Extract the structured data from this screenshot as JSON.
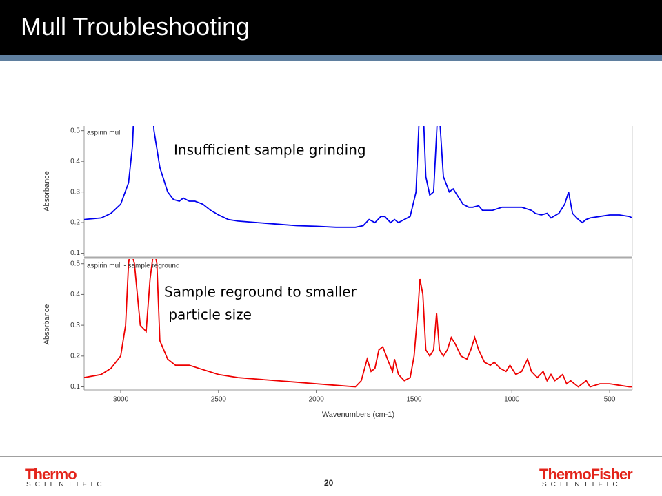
{
  "header": {
    "title": "Mull Troubleshooting"
  },
  "chart_data": [
    {
      "type": "line",
      "ylabel": "Absorbance",
      "annotation": [
        "Insufficient sample grinding"
      ],
      "xlim": [
        3187,
        384
      ],
      "ylim": [
        0.09,
        0.515
      ],
      "yticks": [
        0.1,
        0.2,
        0.3,
        0.4,
        0.5
      ],
      "x": [
        3187,
        3100,
        3050,
        3000,
        2960,
        2940,
        2930,
        2850,
        2830,
        2800,
        2760,
        2730,
        2700,
        2680,
        2650,
        2620,
        2580,
        2540,
        2500,
        2450,
        2400,
        2300,
        2200,
        2100,
        2000,
        1900,
        1800,
        1760,
        1730,
        1700,
        1670,
        1650,
        1620,
        1600,
        1580,
        1520,
        1490,
        1470,
        1455,
        1440,
        1420,
        1400,
        1380,
        1370,
        1350,
        1320,
        1300,
        1270,
        1250,
        1220,
        1200,
        1170,
        1150,
        1100,
        1050,
        1000,
        950,
        900,
        880,
        850,
        820,
        800,
        760,
        730,
        710,
        690,
        660,
        640,
        620,
        600,
        550,
        500,
        450,
        400,
        384
      ],
      "series": [
        {
          "name": "aspirin mull",
          "color": "#0000ee",
          "values": [
            0.21,
            0.215,
            0.23,
            0.26,
            0.33,
            0.45,
            0.6,
            0.7,
            0.5,
            0.38,
            0.3,
            0.275,
            0.27,
            0.28,
            0.27,
            0.27,
            0.26,
            0.24,
            0.225,
            0.21,
            0.205,
            0.2,
            0.195,
            0.19,
            0.188,
            0.185,
            0.185,
            0.19,
            0.21,
            0.2,
            0.22,
            0.22,
            0.2,
            0.21,
            0.2,
            0.22,
            0.3,
            0.6,
            0.6,
            0.35,
            0.29,
            0.3,
            0.55,
            0.55,
            0.35,
            0.3,
            0.31,
            0.28,
            0.26,
            0.25,
            0.25,
            0.255,
            0.24,
            0.24,
            0.25,
            0.25,
            0.25,
            0.24,
            0.23,
            0.225,
            0.23,
            0.215,
            0.23,
            0.26,
            0.3,
            0.23,
            0.21,
            0.2,
            0.21,
            0.215,
            0.22,
            0.225,
            0.225,
            0.22,
            0.215
          ]
        }
      ]
    },
    {
      "type": "line",
      "ylabel": "Absorbance",
      "xlabel": "Wavenumbers (cm-1)",
      "annotation": [
        "Sample reground to smaller",
        " particle size"
      ],
      "xlim": [
        3187,
        384
      ],
      "xticks": [
        3000,
        2500,
        2000,
        1500,
        1000,
        500
      ],
      "ylim": [
        0.09,
        0.515
      ],
      "yticks": [
        0.1,
        0.2,
        0.3,
        0.4,
        0.5
      ],
      "x": [
        3187,
        3100,
        3050,
        3000,
        2975,
        2960,
        2950,
        2930,
        2900,
        2870,
        2850,
        2830,
        2815,
        2800,
        2760,
        2720,
        2650,
        2600,
        2500,
        2400,
        2300,
        2200,
        2100,
        2000,
        1900,
        1800,
        1770,
        1740,
        1720,
        1700,
        1680,
        1660,
        1630,
        1610,
        1600,
        1580,
        1550,
        1520,
        1500,
        1480,
        1470,
        1455,
        1440,
        1420,
        1400,
        1385,
        1370,
        1350,
        1330,
        1310,
        1290,
        1260,
        1230,
        1210,
        1190,
        1170,
        1140,
        1110,
        1090,
        1060,
        1030,
        1010,
        980,
        950,
        920,
        900,
        870,
        840,
        820,
        800,
        780,
        760,
        740,
        720,
        700,
        680,
        660,
        640,
        620,
        600,
        550,
        500,
        450,
        400,
        384
      ],
      "series": [
        {
          "name": "aspirin mull - sample reground",
          "color": "#ee0000",
          "values": [
            0.13,
            0.14,
            0.16,
            0.2,
            0.3,
            0.5,
            0.55,
            0.5,
            0.3,
            0.28,
            0.45,
            0.55,
            0.5,
            0.25,
            0.19,
            0.17,
            0.17,
            0.16,
            0.14,
            0.13,
            0.125,
            0.12,
            0.115,
            0.11,
            0.105,
            0.1,
            0.12,
            0.19,
            0.15,
            0.16,
            0.22,
            0.23,
            0.18,
            0.15,
            0.19,
            0.14,
            0.12,
            0.13,
            0.2,
            0.35,
            0.45,
            0.4,
            0.22,
            0.2,
            0.22,
            0.34,
            0.22,
            0.2,
            0.22,
            0.26,
            0.24,
            0.2,
            0.19,
            0.22,
            0.26,
            0.22,
            0.18,
            0.17,
            0.18,
            0.16,
            0.15,
            0.17,
            0.14,
            0.15,
            0.19,
            0.15,
            0.13,
            0.15,
            0.12,
            0.14,
            0.12,
            0.13,
            0.14,
            0.11,
            0.12,
            0.11,
            0.1,
            0.11,
            0.12,
            0.1,
            0.11,
            0.11,
            0.105,
            0.1,
            0.1
          ]
        }
      ]
    }
  ],
  "footer": {
    "left_logo": "Thermo",
    "left_sub": "SCIENTIFIC",
    "page": "20",
    "right_logo": "ThermoFisher",
    "right_sub": "SCIENTIFIC"
  }
}
